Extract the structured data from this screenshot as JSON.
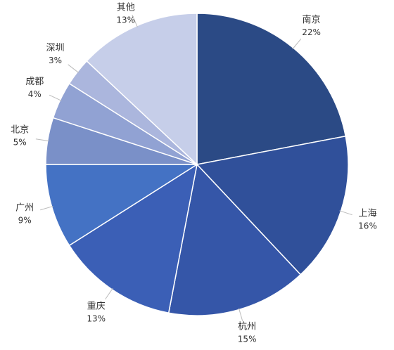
{
  "chart_data": {
    "type": "pie",
    "categories": [
      "南京",
      "上海",
      "杭州",
      "重庆",
      "广州",
      "北京",
      "成都",
      "深圳",
      "其他"
    ],
    "values": [
      22,
      16,
      15,
      13,
      9,
      5,
      4,
      3,
      13
    ],
    "value_labels": [
      "22%",
      "16%",
      "15%",
      "13%",
      "9%",
      "5%",
      "4%",
      "3%",
      "13%"
    ],
    "colors": [
      "#2b4a85",
      "#30509a",
      "#3556a8",
      "#3b5fb6",
      "#4472c4",
      "#7a90c8",
      "#91a2d3",
      "#abb6dd",
      "#c6cee9"
    ]
  }
}
